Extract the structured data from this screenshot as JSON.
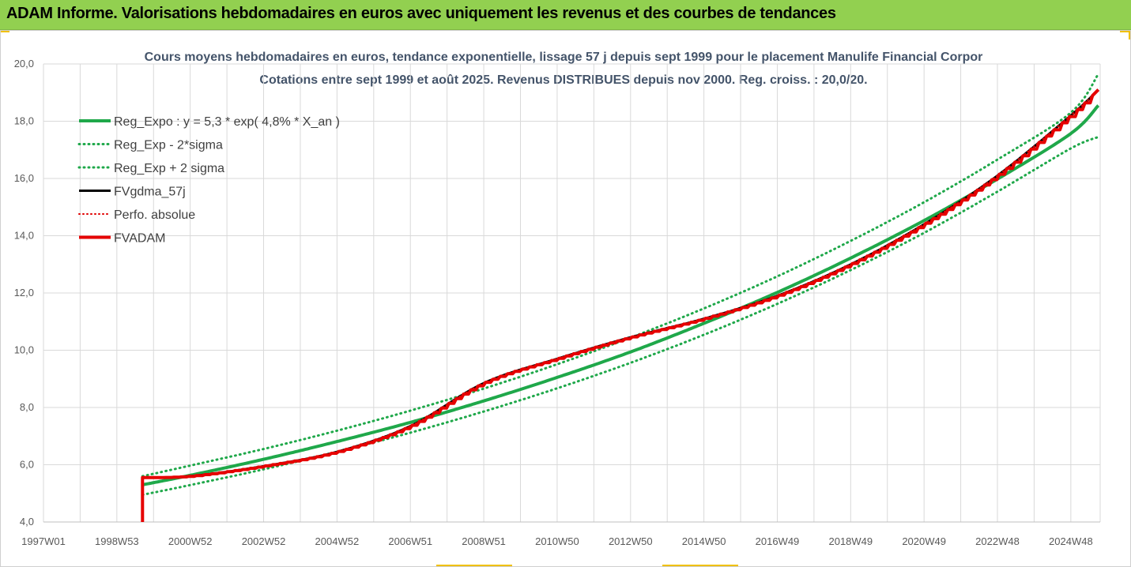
{
  "header": {
    "title": "ADAM Informe. Valorisations hebdomadaires en euros avec uniquement les revenus et des courbes de tendances"
  },
  "colors": {
    "banner": "#92d050",
    "trend": "#1fa84a",
    "fvgdma": "#000000",
    "perf": "#e00000",
    "fvadam": "#e60000",
    "grid": "#d9d9d9"
  },
  "chart_data": {
    "type": "line",
    "title_line1": "Cours moyens hebdomadaires en euros, tendance exponentielle, lissage 57 j depuis sept 1999 pour le placement Manulife Financial Corpor",
    "title_line2": "Cotations entre sept 1999 et août 2025. Revenus DISTRIBUES depuis nov 2000. Reg. croiss. : 20,0/20.",
    "xlabel": "",
    "ylabel": "",
    "ylim": [
      4,
      20
    ],
    "xlim": [
      1997.0,
      2025.8
    ],
    "y_ticks": [
      "4,0",
      "6,0",
      "8,0",
      "10,0",
      "12,0",
      "14,0",
      "16,0",
      "18,0",
      "20,0"
    ],
    "x_tick_labels": [
      "1997W01",
      "1998W53",
      "2000W52",
      "2002W52",
      "2004W52",
      "2006W51",
      "2008W51",
      "2010W50",
      "2012W50",
      "2014W50",
      "2016W49",
      "2018W49",
      "2020W49",
      "2022W48",
      "2024W48"
    ],
    "x_tick_years": [
      1997.0,
      1999.0,
      2001.0,
      2003.0,
      2005.0,
      2007.0,
      2009.0,
      2011.0,
      2013.0,
      2015.0,
      2017.0,
      2019.0,
      2021.0,
      2023.0,
      2025.0
    ],
    "grid": true,
    "legend_position": "top-left",
    "series": [
      {
        "name": "Reg_Expo : y = 5,3 * exp( 4,8% *  X_an )",
        "style": "solid-thick",
        "color": "#1fa84a",
        "x": [
          1999.7,
          2001.0,
          2003.0,
          2005.0,
          2007.0,
          2009.0,
          2011.0,
          2013.0,
          2015.0,
          2017.0,
          2019.0,
          2021.0,
          2023.0,
          2025.0,
          2025.75
        ],
        "values": [
          5.3,
          5.63,
          6.19,
          6.81,
          7.48,
          8.23,
          9.05,
          9.94,
          10.94,
          12.02,
          13.22,
          14.53,
          15.98,
          17.57,
          18.55
        ]
      },
      {
        "name": "Reg_Exp - 2*sigma",
        "style": "dotted",
        "color": "#1fa84a",
        "x": [
          1999.7,
          2001.0,
          2003.0,
          2005.0,
          2007.0,
          2009.0,
          2011.0,
          2013.0,
          2015.0,
          2017.0,
          2019.0,
          2021.0,
          2023.0,
          2025.0,
          2025.75
        ],
        "values": [
          4.95,
          5.29,
          5.84,
          6.45,
          7.12,
          7.86,
          8.67,
          9.56,
          10.54,
          11.62,
          12.8,
          14.1,
          15.54,
          17.05,
          17.45
        ]
      },
      {
        "name": "Reg_Exp + 2 sigma",
        "style": "dotted",
        "color": "#1fa84a",
        "x": [
          1999.7,
          2001.0,
          2003.0,
          2005.0,
          2007.0,
          2009.0,
          2011.0,
          2013.0,
          2015.0,
          2017.0,
          2019.0,
          2021.0,
          2023.0,
          2025.0,
          2025.75
        ],
        "values": [
          5.6,
          5.97,
          6.55,
          7.19,
          7.89,
          8.66,
          9.51,
          10.44,
          11.46,
          12.58,
          13.82,
          15.17,
          16.66,
          18.3,
          19.65
        ]
      },
      {
        "name": "FVgdma_57j",
        "style": "solid-thick",
        "color": "#000000",
        "x": [
          1999.7,
          2001.0,
          2003.0,
          2005.0,
          2007.0,
          2009.0,
          2011.0,
          2013.0,
          2015.0,
          2017.0,
          2019.0,
          2021.0,
          2023.0,
          2025.0,
          2025.75
        ],
        "values": [
          5.55,
          5.6,
          5.95,
          6.45,
          7.35,
          8.85,
          9.7,
          10.45,
          11.1,
          11.9,
          13.0,
          14.4,
          16.1,
          18.2,
          19.1
        ]
      },
      {
        "name": "Perfo. absolue",
        "style": "dotted",
        "color": "#e00000",
        "x": [
          1999.7,
          2001.0,
          2003.0,
          2005.0,
          2007.0,
          2009.0,
          2011.0,
          2013.0,
          2015.0,
          2017.0,
          2019.0,
          2021.0,
          2023.0,
          2025.0,
          2025.75
        ],
        "values": [
          5.55,
          5.6,
          5.95,
          6.45,
          7.35,
          8.85,
          9.7,
          10.45,
          11.1,
          11.9,
          13.0,
          14.4,
          16.1,
          18.2,
          19.1
        ]
      },
      {
        "name": "FVADAM",
        "style": "solid-thick",
        "color": "#e60000",
        "x": [
          1999.7,
          1999.7,
          2001.0,
          2003.0,
          2005.0,
          2007.0,
          2009.0,
          2011.0,
          2013.0,
          2015.0,
          2017.0,
          2019.0,
          2021.0,
          2023.0,
          2025.0,
          2025.75
        ],
        "values": [
          4.0,
          5.55,
          5.6,
          5.95,
          6.45,
          7.35,
          8.85,
          9.7,
          10.45,
          11.1,
          11.9,
          13.0,
          14.4,
          16.1,
          18.2,
          19.1
        ]
      }
    ]
  }
}
